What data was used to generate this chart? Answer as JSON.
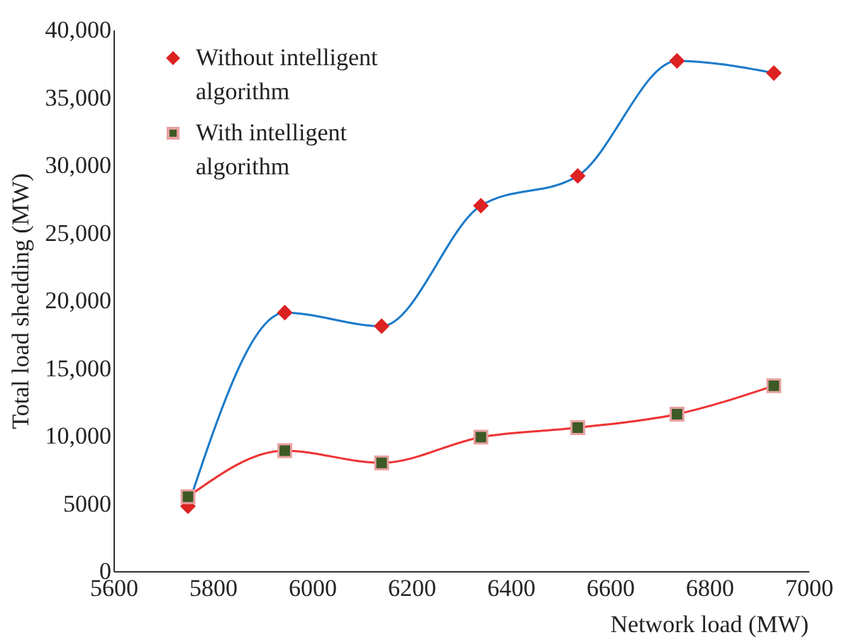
{
  "chart_data": {
    "type": "line",
    "xlabel": "Network load (MW)",
    "ylabel": "Total load shedding (MW)",
    "x": [
      5750,
      5945,
      6140,
      6340,
      6535,
      6735,
      6930
    ],
    "series": [
      {
        "name": "Without intelligent algorithm",
        "color": "#1a7ac9",
        "marker": "diamond",
        "values": [
          4800,
          19100,
          18100,
          27000,
          29200,
          37700,
          36800
        ]
      },
      {
        "name": "With intelligent algorithm",
        "color": "#ee3333",
        "marker": "square",
        "values": [
          5500,
          8900,
          8000,
          9900,
          10600,
          11600,
          13700
        ]
      }
    ],
    "xlim": [
      5600,
      7000
    ],
    "xticks": [
      5600,
      5800,
      6000,
      6200,
      6400,
      6600,
      6800,
      7000
    ],
    "ylim": [
      0,
      40000
    ],
    "yticks": [
      0,
      5000,
      {
        "value": 10000,
        "label": "10,000"
      },
      {
        "value": 15000,
        "label": "15,000"
      },
      {
        "value": 20000,
        "label": "20,000"
      },
      {
        "value": 25000,
        "label": "25,000"
      },
      {
        "value": 30000,
        "label": "30,000"
      },
      {
        "value": 35000,
        "label": "35,000"
      },
      {
        "value": 40000,
        "label": "40,000"
      }
    ],
    "grid": false,
    "legend": "top left"
  }
}
